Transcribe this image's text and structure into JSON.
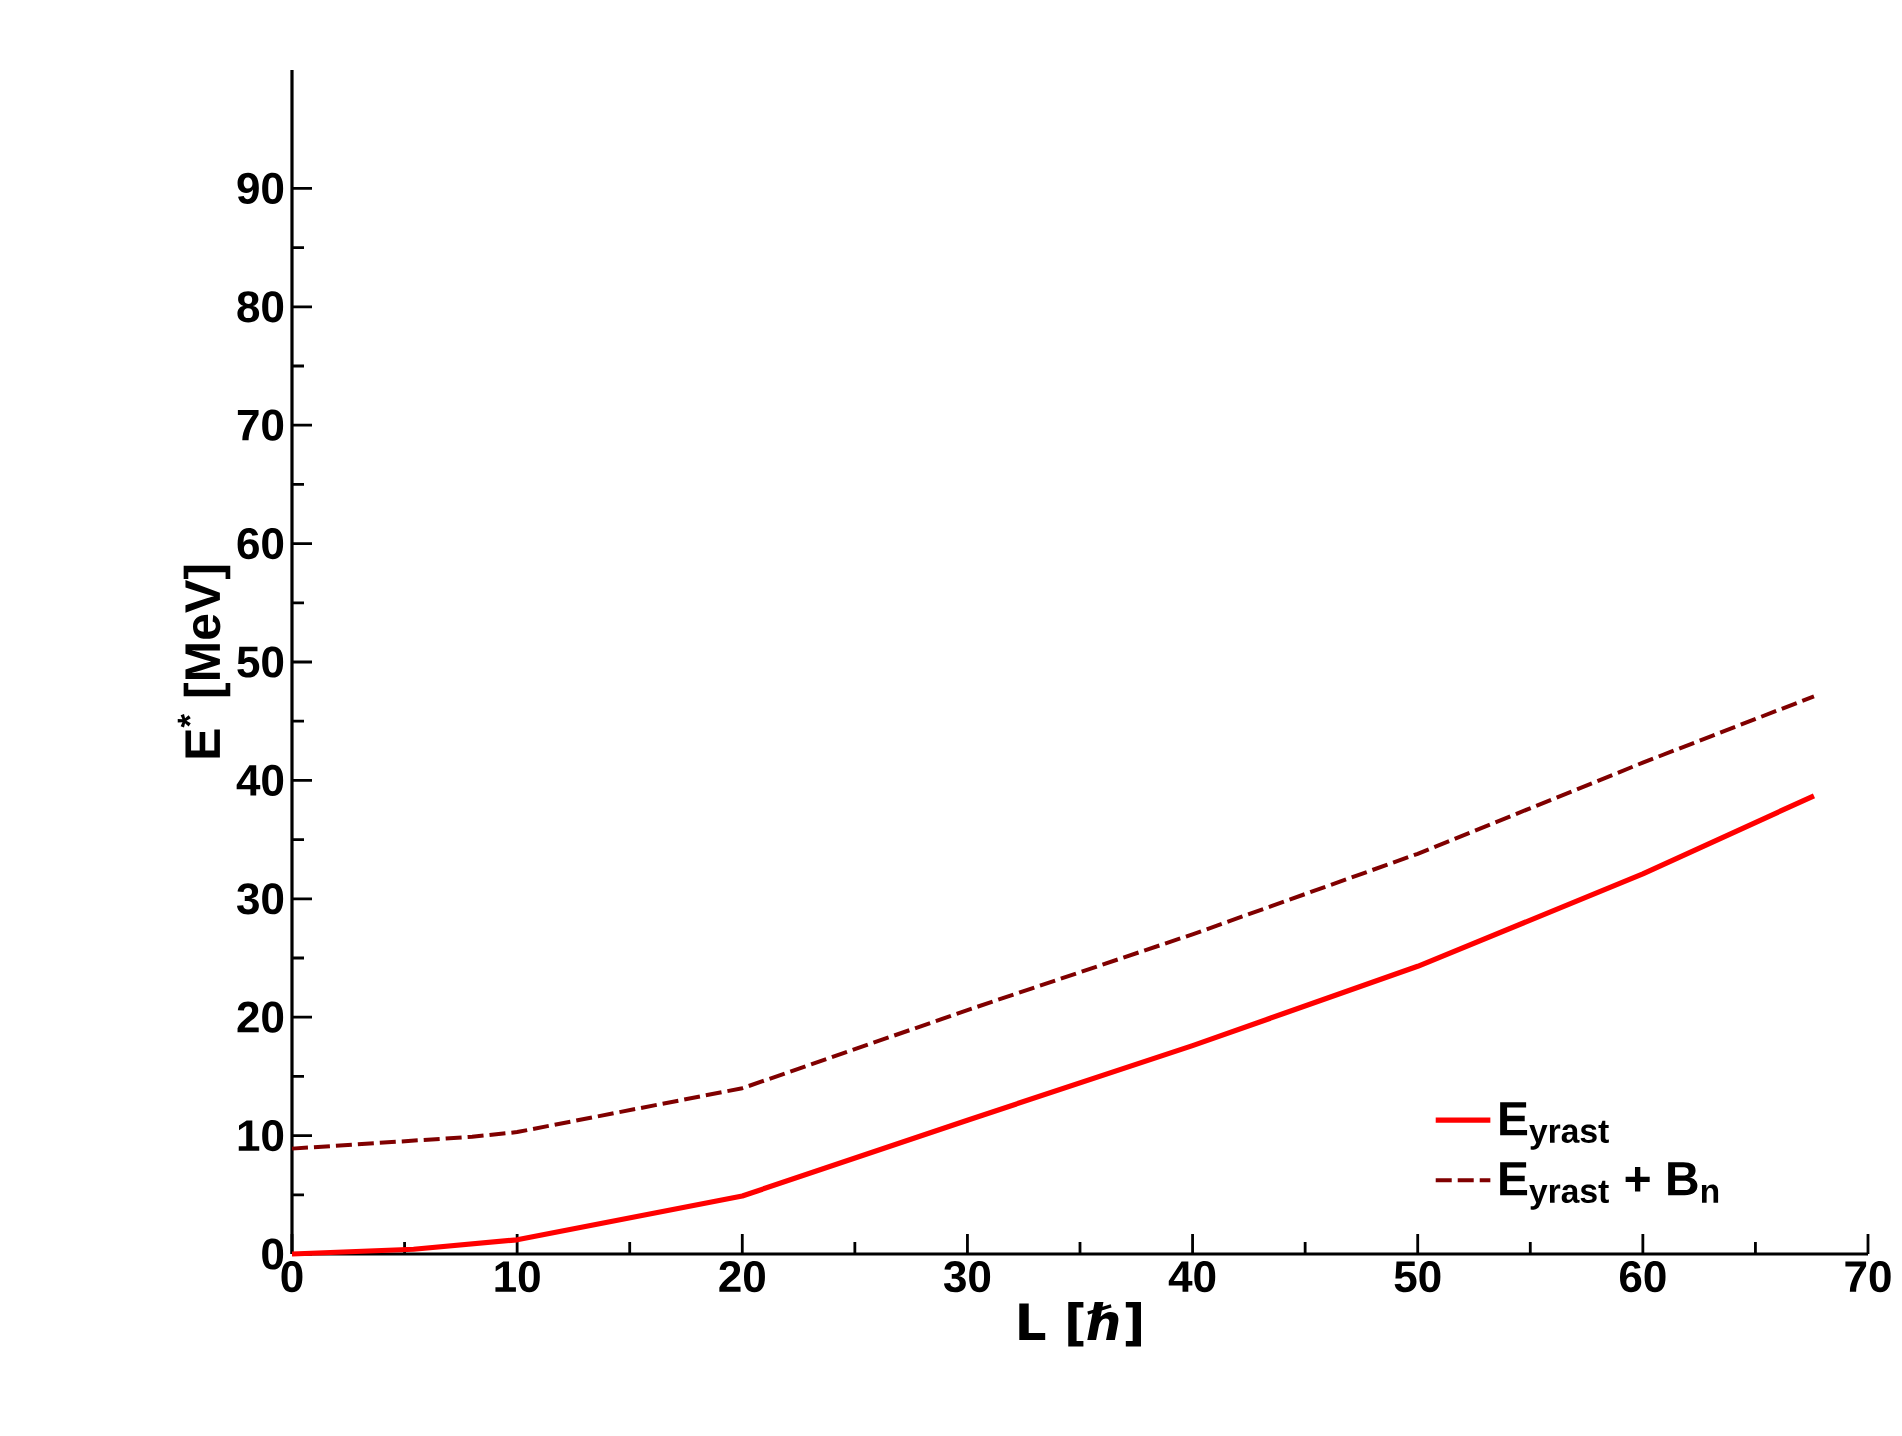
{
  "chart_data": {
    "type": "line",
    "xlabel": "L [ℏ]",
    "ylabel": "E$^{*}$ [MeV]",
    "xlim": [
      0,
      70
    ],
    "ylim": [
      0,
      100
    ],
    "xticks": [
      0,
      10,
      20,
      30,
      40,
      50,
      60,
      70
    ],
    "yticks": [
      0,
      10,
      20,
      30,
      40,
      50,
      60,
      70,
      80,
      90
    ],
    "legend": "bottom right",
    "grid": false,
    "series": [
      {
        "name": "E$_{yrast}$",
        "color": "#ff0000",
        "line_style": "solid",
        "x": [
          0,
          5.4,
          10,
          20,
          30,
          40,
          50,
          60,
          67.6
        ],
        "values": [
          0,
          0.4,
          1.2,
          4.9,
          11.3,
          17.6,
          24.3,
          32.1,
          38.7
        ]
      },
      {
        "name": "E$_{yrast}$ + B$_{n}$",
        "color": "#800000",
        "line_style": "dashed",
        "x": [
          0,
          8,
          10,
          20,
          30,
          40,
          50,
          60,
          67.6
        ],
        "values": [
          8.9,
          9.9,
          10.3,
          14.0,
          20.6,
          27.0,
          33.8,
          41.5,
          47.1
        ]
      }
    ]
  }
}
